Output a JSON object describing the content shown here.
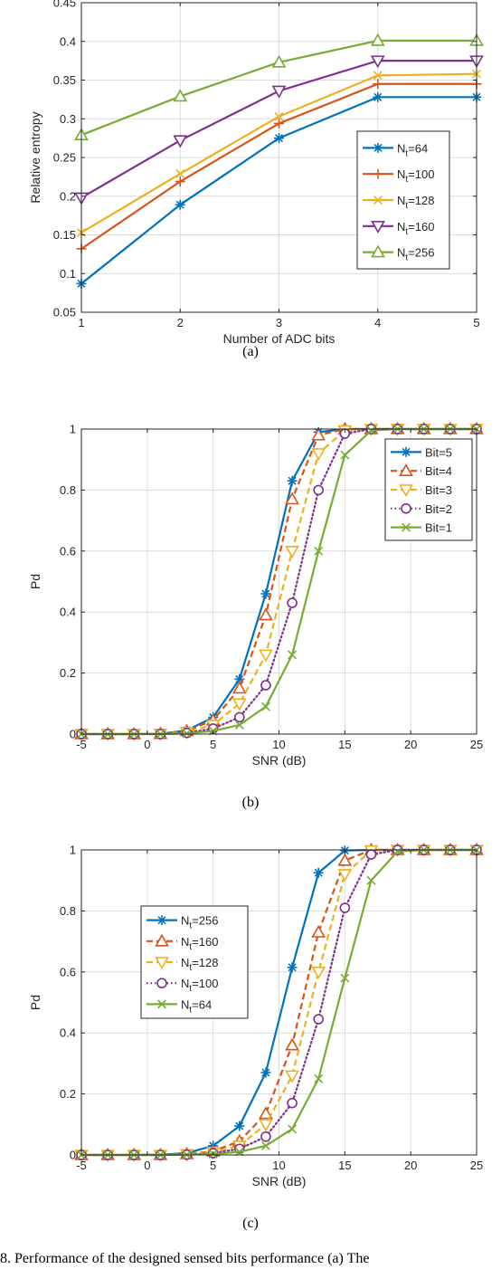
{
  "chart_data": [
    {
      "type": "line",
      "caption": "(a)",
      "xlabel": "Number of ADC bits",
      "ylabel": "Relative entropy",
      "xlim": [
        1,
        5
      ],
      "ylim": [
        0.05,
        0.45
      ],
      "xticks": [
        1,
        2,
        3,
        4,
        5
      ],
      "yticks": [
        0.05,
        0.1,
        0.15,
        0.2,
        0.25,
        0.3,
        0.35,
        0.4,
        0.45
      ],
      "grid": true,
      "legend": "center-right",
      "x": [
        1,
        2,
        3,
        4,
        5
      ],
      "series": [
        {
          "name": "N_t=64",
          "base": "N",
          "sub": "t",
          "rest": "=64",
          "color": "#0072BD",
          "marker": "asterisk",
          "dash": "solid",
          "values": [
            0.087,
            0.189,
            0.275,
            0.328,
            0.328
          ]
        },
        {
          "name": "N_t=100",
          "base": "N",
          "sub": "t",
          "rest": "=100",
          "color": "#D95319",
          "marker": "plus",
          "dash": "solid",
          "values": [
            0.132,
            0.219,
            0.294,
            0.345,
            0.345
          ]
        },
        {
          "name": "N_t=128",
          "base": "N",
          "sub": "t",
          "rest": "=128",
          "color": "#EDB120",
          "marker": "x",
          "dash": "solid",
          "values": [
            0.153,
            0.229,
            0.303,
            0.356,
            0.358
          ]
        },
        {
          "name": "N_t=160",
          "base": "N",
          "sub": "t",
          "rest": "=160",
          "color": "#7E2F8E",
          "marker": "tri-down",
          "dash": "solid",
          "values": [
            0.198,
            0.272,
            0.336,
            0.375,
            0.375
          ]
        },
        {
          "name": "N_t=256",
          "base": "N",
          "sub": "t",
          "rest": "=256",
          "color": "#77AC30",
          "marker": "tri-up",
          "dash": "solid",
          "values": [
            0.279,
            0.329,
            0.373,
            0.401,
            0.401
          ]
        }
      ]
    },
    {
      "type": "line",
      "caption": "(b)",
      "xlabel": "SNR (dB)",
      "ylabel": "Pd",
      "xlim": [
        -5,
        25
      ],
      "ylim": [
        0,
        1
      ],
      "xticks": [
        -5,
        0,
        5,
        10,
        15,
        20,
        25
      ],
      "yticks": [
        0,
        0.2,
        0.4,
        0.6,
        0.8,
        1
      ],
      "grid": true,
      "legend": "top-right",
      "x": [
        -5,
        -3,
        -1,
        1,
        3,
        5,
        7,
        9,
        11,
        13,
        15,
        17,
        19,
        21,
        23,
        25
      ],
      "series": [
        {
          "name": "Bit=5",
          "base": "Bit=5",
          "sub": "",
          "rest": "",
          "color": "#0072BD",
          "marker": "asterisk",
          "dash": "solid",
          "values": [
            0,
            0,
            0,
            0.001,
            0.012,
            0.055,
            0.18,
            0.46,
            0.83,
            0.99,
            1,
            1,
            1,
            1,
            1,
            1
          ]
        },
        {
          "name": "Bit=4",
          "base": "Bit=4",
          "sub": "",
          "rest": "",
          "color": "#D95319",
          "marker": "tri-up",
          "dash": "dashed",
          "values": [
            0,
            0,
            0,
            0.001,
            0.01,
            0.045,
            0.15,
            0.39,
            0.77,
            0.98,
            1,
            1,
            1,
            1,
            1,
            1
          ]
        },
        {
          "name": "Bit=3",
          "base": "Bit=3",
          "sub": "",
          "rest": "",
          "color": "#EDB120",
          "marker": "tri-down",
          "dash": "dashed",
          "values": [
            0,
            0,
            0,
            0.001,
            0.006,
            0.03,
            0.1,
            0.26,
            0.6,
            0.92,
            0.995,
            1,
            1,
            1,
            1,
            1
          ]
        },
        {
          "name": "Bit=2",
          "base": "Bit=2",
          "sub": "",
          "rest": "",
          "color": "#7E2F8E",
          "marker": "circle",
          "dash": "dotted",
          "values": [
            0,
            0,
            0,
            0,
            0.004,
            0.018,
            0.055,
            0.16,
            0.43,
            0.8,
            0.985,
            1,
            1,
            1,
            1,
            1
          ]
        },
        {
          "name": "Bit=1",
          "base": "Bit=1",
          "sub": "",
          "rest": "",
          "color": "#77AC30",
          "marker": "x",
          "dash": "solid",
          "values": [
            0,
            0,
            0,
            0,
            0.002,
            0.01,
            0.03,
            0.09,
            0.26,
            0.6,
            0.915,
            0.995,
            1,
            1,
            1,
            1
          ]
        }
      ]
    },
    {
      "type": "line",
      "caption": "(c)",
      "xlabel": "SNR (dB)",
      "ylabel": "Pd",
      "xlim": [
        -5,
        25
      ],
      "ylim": [
        0,
        1
      ],
      "xticks": [
        -5,
        0,
        5,
        10,
        15,
        20,
        25
      ],
      "yticks": [
        0,
        0.2,
        0.4,
        0.6,
        0.8,
        1
      ],
      "grid": true,
      "legend": "top-left",
      "x": [
        -5,
        -3,
        -1,
        1,
        3,
        5,
        7,
        9,
        11,
        13,
        15,
        17,
        19,
        21,
        23,
        25
      ],
      "series": [
        {
          "name": "N_t=256",
          "base": "N",
          "sub": "t",
          "rest": "=256",
          "color": "#0072BD",
          "marker": "asterisk",
          "dash": "solid",
          "values": [
            0,
            0,
            0,
            0.001,
            0.006,
            0.03,
            0.095,
            0.27,
            0.615,
            0.925,
            0.998,
            1,
            1,
            1,
            1,
            1
          ]
        },
        {
          "name": "N_t=160",
          "base": "N",
          "sub": "t",
          "rest": "=160",
          "color": "#D95319",
          "marker": "tri-up",
          "dash": "dashed",
          "values": [
            0,
            0,
            0,
            0,
            0.003,
            0.012,
            0.045,
            0.135,
            0.36,
            0.73,
            0.965,
            1,
            1,
            1,
            1,
            1
          ]
        },
        {
          "name": "N_t=128",
          "base": "N",
          "sub": "t",
          "rest": "=128",
          "color": "#EDB120",
          "marker": "tri-down",
          "dash": "dashed",
          "values": [
            0,
            0,
            0,
            0,
            0.002,
            0.009,
            0.03,
            0.1,
            0.26,
            0.6,
            0.92,
            0.998,
            1,
            1,
            1,
            1
          ]
        },
        {
          "name": "N_t=100",
          "base": "N",
          "sub": "t",
          "rest": "=100",
          "color": "#7E2F8E",
          "marker": "circle",
          "dash": "dotted",
          "values": [
            0,
            0,
            0,
            0,
            0.001,
            0.006,
            0.02,
            0.06,
            0.17,
            0.445,
            0.81,
            0.985,
            1,
            1,
            1,
            1
          ]
        },
        {
          "name": "N_t=64",
          "base": "N",
          "sub": "t",
          "rest": "=64",
          "color": "#77AC30",
          "marker": "x",
          "dash": "solid",
          "values": [
            0,
            0,
            0,
            0,
            0.001,
            0.003,
            0.01,
            0.03,
            0.085,
            0.25,
            0.58,
            0.9,
            0.995,
            1,
            1,
            1
          ]
        }
      ]
    }
  ],
  "figure_caption": "8.  Performance of the designed sensed bits performance (a) The"
}
